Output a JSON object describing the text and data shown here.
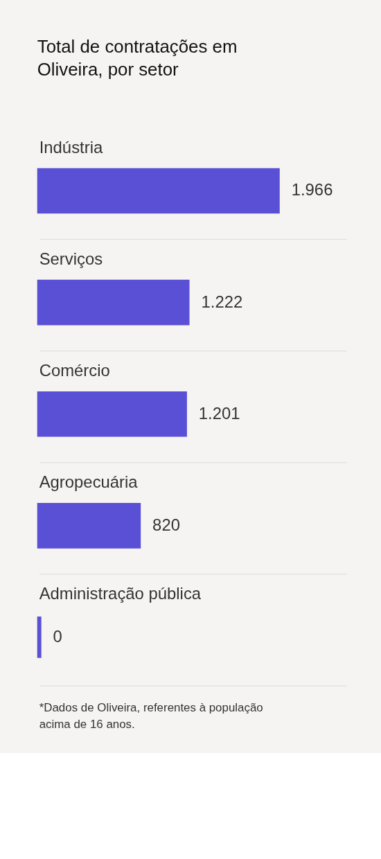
{
  "chart_data": {
    "type": "bar",
    "orientation": "horizontal",
    "title": "Total de contratações em Oliveira, por setor",
    "categories": [
      "Indústria",
      "Serviços",
      "Comércio",
      "Agropecuária",
      "Administração pública"
    ],
    "values": [
      1966,
      1222,
      1201,
      820,
      0
    ],
    "value_labels": [
      "1.966",
      "1.222",
      "1.201",
      "820",
      "0"
    ],
    "color": "#5a50d6",
    "grid": true,
    "annotations": [
      "*Dados de Oliveira, referentes à população acima de 16 anos."
    ]
  }
}
